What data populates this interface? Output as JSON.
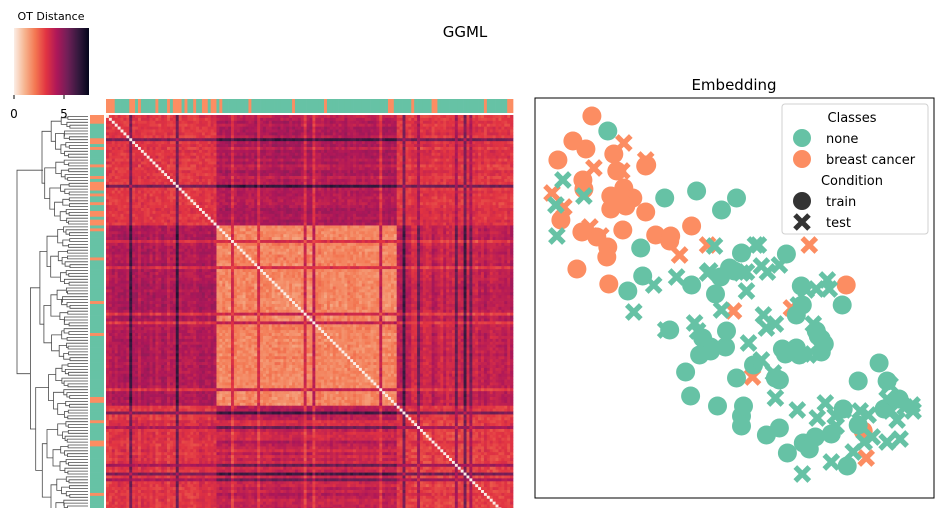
{
  "figure": {
    "suptitle": "GGML"
  },
  "colorbar": {
    "title": "OT Distance",
    "ticks": [
      0,
      5
    ],
    "range": [
      0,
      7.5
    ],
    "stops": [
      "#fbeee6",
      "#f6b48f",
      "#f37651",
      "#e13342",
      "#ad1759",
      "#701f57",
      "#35193e",
      "#03051a"
    ]
  },
  "chart_data": [
    {
      "type": "heatmap",
      "title": "",
      "colorbar_label": "OT Distance",
      "n": 140,
      "class_colors": {
        "none": "#66c2a5",
        "breast cancer": "#fc8d62"
      }
    },
    {
      "type": "scatter",
      "title": "Embedding",
      "xlabel": "",
      "ylabel": "",
      "xlim": [
        0,
        400
      ],
      "ylim": [
        0,
        400
      ],
      "legend": {
        "placement": "top-right",
        "classes_title": "Classes",
        "classes": [
          {
            "label": "none",
            "color": "#66c2a5"
          },
          {
            "label": "breast cancer",
            "color": "#fc8d62"
          }
        ],
        "condition_title": "Condition",
        "conditions": [
          {
            "label": "train",
            "marker": "circle"
          },
          {
            "label": "test",
            "marker": "x"
          }
        ]
      },
      "series": [
        {
          "class": "breast cancer",
          "condition": "train",
          "points": [
            [
              57,
              382
            ],
            [
              38,
              357
            ],
            [
              23,
              338
            ],
            [
              51,
              349
            ],
            [
              79,
              344
            ],
            [
              48,
              318
            ],
            [
              82,
              327
            ],
            [
              49,
              309
            ],
            [
              76,
              302
            ],
            [
              89,
              310
            ],
            [
              111,
              332
            ],
            [
              98,
              300
            ],
            [
              112,
              333
            ],
            [
              76,
              289
            ],
            [
              73,
              251
            ],
            [
              91,
              292
            ],
            [
              111,
              286
            ],
            [
              121,
              263
            ],
            [
              135,
              257
            ],
            [
              157,
              272
            ],
            [
              136,
              262
            ],
            [
              88,
              268
            ],
            [
              62,
              261
            ],
            [
              26,
              278
            ],
            [
              42,
              229
            ],
            [
              74,
              214
            ],
            [
              72,
              241
            ],
            [
              47,
              266
            ],
            [
              312,
              213
            ],
            [
              329,
              67
            ]
          ]
        },
        {
          "class": "breast cancer",
          "condition": "test",
          "points": [
            [
              89,
              355
            ],
            [
              111,
              338
            ],
            [
              87,
              327
            ],
            [
              59,
              330
            ],
            [
              17,
              305
            ],
            [
              29,
              291
            ],
            [
              86,
              302
            ],
            [
              55,
              271
            ],
            [
              66,
              262
            ],
            [
              145,
              243
            ],
            [
              173,
              253
            ],
            [
              275,
              253
            ],
            [
              257,
              190
            ],
            [
              199,
              187
            ],
            [
              218,
              121
            ],
            [
              332,
              40
            ]
          ]
        },
        {
          "class": "none",
          "condition": "train",
          "points": [
            [
              73,
              367
            ],
            [
              130,
              300
            ],
            [
              162,
              307
            ],
            [
              202,
              300
            ],
            [
              187,
              288
            ],
            [
              106,
              250
            ],
            [
              108,
              222
            ],
            [
              93,
              207
            ],
            [
              207,
              245
            ],
            [
              200,
              227
            ],
            [
              195,
              230
            ],
            [
              157,
              213
            ],
            [
              186,
              221
            ],
            [
              181,
              204
            ],
            [
              252,
              244
            ],
            [
              267,
              212
            ],
            [
              262,
              183
            ],
            [
              268,
              193
            ],
            [
              308,
              193
            ],
            [
              282,
              167
            ],
            [
              287,
              159
            ],
            [
              265,
              143
            ],
            [
              262,
              150
            ],
            [
              251,
              144
            ],
            [
              287,
              146
            ],
            [
              284,
              162
            ],
            [
              290,
              154
            ],
            [
              248,
              149
            ],
            [
              241,
              120
            ],
            [
              245,
              118
            ],
            [
              219,
              133
            ],
            [
              191,
              151
            ],
            [
              192,
              167
            ],
            [
              176,
              151
            ],
            [
              168,
              160
            ],
            [
              176,
              147
            ],
            [
              165,
              143
            ],
            [
              135,
              168
            ],
            [
              151,
              126
            ],
            [
              156,
              102
            ],
            [
              183,
              92
            ],
            [
              202,
              120
            ],
            [
              207,
              82
            ],
            [
              207,
              72
            ],
            [
              209,
              92
            ],
            [
              232,
              63
            ],
            [
              245,
              70
            ],
            [
              253,
              45
            ],
            [
              269,
              55
            ],
            [
              275,
              49
            ],
            [
              281,
              61
            ],
            [
              297,
              64
            ],
            [
              313,
              32
            ],
            [
              309,
              89
            ],
            [
              324,
              73
            ],
            [
              324,
              117
            ],
            [
              345,
              135
            ],
            [
              353,
              117
            ],
            [
              365,
              99
            ],
            [
              350,
              89
            ]
          ]
        },
        {
          "class": "none",
          "condition": "test",
          "points": [
            [
              28,
              318
            ],
            [
              49,
              302
            ],
            [
              22,
              262
            ],
            [
              21,
              293
            ],
            [
              180,
              252
            ],
            [
              221,
              253
            ],
            [
              227,
              232
            ],
            [
              224,
              253
            ],
            [
              207,
              225
            ],
            [
              245,
              233
            ],
            [
              173,
              225
            ],
            [
              142,
              221
            ],
            [
              119,
              213
            ],
            [
              175,
              227
            ],
            [
              212,
              207
            ],
            [
              233,
              226
            ],
            [
              212,
              226
            ],
            [
              264,
              193
            ],
            [
              272,
              208
            ],
            [
              295,
              209
            ],
            [
              282,
              209
            ],
            [
              293,
              218
            ],
            [
              131,
              168
            ],
            [
              99,
              186
            ],
            [
              160,
              175
            ],
            [
              163,
              167
            ],
            [
              187,
              188
            ],
            [
              214,
              155
            ],
            [
              232,
              170
            ],
            [
              241,
              174
            ],
            [
              229,
              183
            ],
            [
              274,
              143
            ],
            [
              268,
              144
            ],
            [
              279,
              174
            ],
            [
              285,
              153
            ],
            [
              227,
              138
            ],
            [
              239,
              125
            ],
            [
              241,
              100
            ],
            [
              263,
              88
            ],
            [
              283,
              80
            ],
            [
              309,
              88
            ],
            [
              326,
              87
            ],
            [
              334,
              83
            ],
            [
              353,
              56
            ],
            [
              357,
              87
            ],
            [
              363,
              78
            ],
            [
              366,
              59
            ],
            [
              379,
              87
            ],
            [
              371,
              91
            ],
            [
              378,
              93
            ],
            [
              356,
              113
            ],
            [
              353,
              99
            ],
            [
              291,
              95
            ],
            [
              301,
              82
            ],
            [
              268,
              24
            ],
            [
              297,
              36
            ],
            [
              302,
              72
            ],
            [
              338,
              61
            ],
            [
              330,
              56
            ],
            [
              319,
              46
            ]
          ]
        }
      ]
    }
  ]
}
